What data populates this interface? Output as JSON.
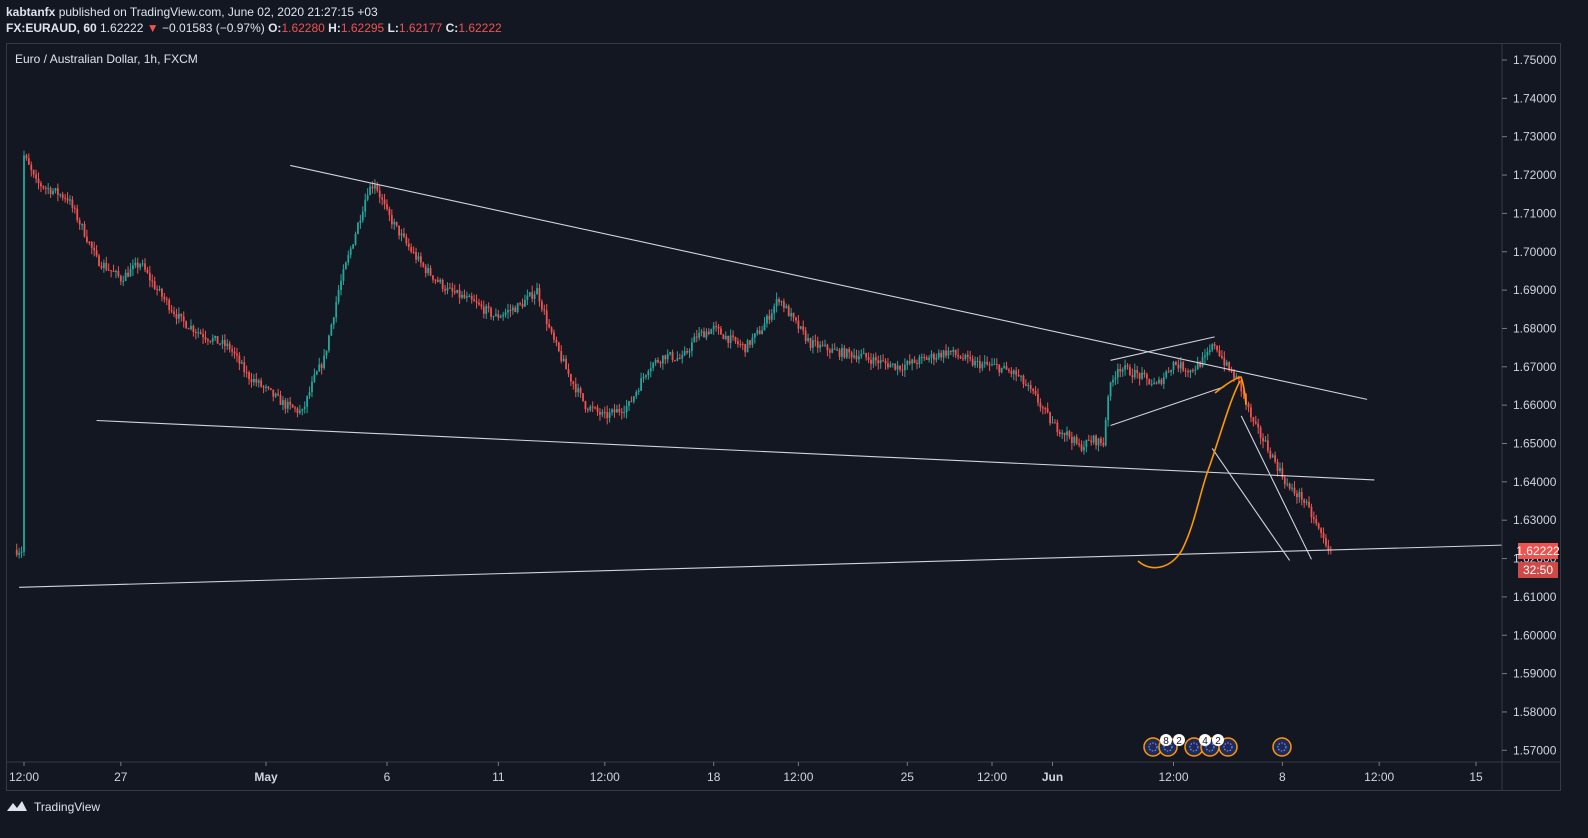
{
  "header": {
    "author": "kabtanfx",
    "published_text": "published on TradingView.com, June 02, 2020 21:27:15 +03",
    "symbol": "FX:EURAUD, 60",
    "last": "1.62222",
    "change": "−0.01583 (−0.97%)",
    "open_label": "O:",
    "open": "1.62280",
    "high_label": "H:",
    "high": "1.62295",
    "low_label": "L:",
    "low": "1.62177",
    "close_label": "C:",
    "close": "1.62222"
  },
  "legend": {
    "title": "Euro / Australian Dollar, 1h, FXCM"
  },
  "footer": {
    "brand": "TradingView"
  },
  "colors": {
    "background": "#131722",
    "up": "#26a69a",
    "down": "#ef5350",
    "drawing": "#d1d4dc",
    "orange": "#ff9800"
  },
  "chart_data": {
    "type": "candlestick",
    "title": "Euro / Australian Dollar, 1h, FXCM",
    "ylim": [
      1.565,
      1.7525
    ],
    "y_ticks": [
      "1.75000",
      "1.74000",
      "1.73000",
      "1.72000",
      "1.71000",
      "1.70000",
      "1.69000",
      "1.68000",
      "1.67000",
      "1.66000",
      "1.65000",
      "1.64000",
      "1.63000",
      "1.62000",
      "1.61000",
      "1.60000",
      "1.59000",
      "1.58000",
      "1.57000"
    ],
    "x_ticks": [
      "12:00",
      "27",
      "May",
      "6",
      "11",
      "12:00",
      "18",
      "12:00",
      "25",
      "12:00",
      "Jun",
      "12:00",
      "8",
      "12:00",
      "15"
    ],
    "x_tick_bar_index": [
      0,
      40,
      100,
      150,
      196,
      240,
      285,
      320,
      365,
      400,
      425,
      475,
      520,
      560,
      600
    ],
    "bar_count": 630,
    "price_path": [
      [
        0,
        1.725
      ],
      [
        5,
        1.718
      ],
      [
        18,
        1.714
      ],
      [
        25,
        1.705
      ],
      [
        30,
        1.698
      ],
      [
        40,
        1.693
      ],
      [
        48,
        1.697
      ],
      [
        55,
        1.69
      ],
      [
        65,
        1.682
      ],
      [
        75,
        1.678
      ],
      [
        85,
        1.675
      ],
      [
        92,
        1.668
      ],
      [
        100,
        1.664
      ],
      [
        108,
        1.66
      ],
      [
        115,
        1.658
      ],
      [
        120,
        1.667
      ],
      [
        124,
        1.672
      ],
      [
        130,
        1.69
      ],
      [
        137,
        1.705
      ],
      [
        142,
        1.716
      ],
      [
        145,
        1.718
      ],
      [
        150,
        1.71
      ],
      [
        158,
        1.702
      ],
      [
        165,
        1.696
      ],
      [
        175,
        1.69
      ],
      [
        185,
        1.687
      ],
      [
        195,
        1.683
      ],
      [
        205,
        1.686
      ],
      [
        212,
        1.69
      ],
      [
        218,
        1.678
      ],
      [
        225,
        1.668
      ],
      [
        232,
        1.66
      ],
      [
        240,
        1.657
      ],
      [
        250,
        1.66
      ],
      [
        258,
        1.67
      ],
      [
        265,
        1.673
      ],
      [
        272,
        1.672
      ],
      [
        278,
        1.678
      ],
      [
        285,
        1.68
      ],
      [
        292,
        1.677
      ],
      [
        298,
        1.675
      ],
      [
        305,
        1.68
      ],
      [
        312,
        1.688
      ],
      [
        318,
        1.682
      ],
      [
        325,
        1.676
      ],
      [
        335,
        1.674
      ],
      [
        345,
        1.673
      ],
      [
        355,
        1.671
      ],
      [
        362,
        1.67
      ],
      [
        372,
        1.672
      ],
      [
        382,
        1.674
      ],
      [
        392,
        1.671
      ],
      [
        402,
        1.67
      ],
      [
        410,
        1.668
      ],
      [
        418,
        1.662
      ],
      [
        425,
        1.655
      ],
      [
        432,
        1.652
      ],
      [
        436,
        1.649
      ],
      [
        442,
        1.651
      ],
      [
        446,
        1.65
      ],
      [
        448,
        1.663
      ],
      [
        452,
        1.67
      ],
      [
        460,
        1.668
      ],
      [
        468,
        1.665
      ],
      [
        475,
        1.671
      ],
      [
        482,
        1.669
      ],
      [
        488,
        1.672
      ],
      [
        492,
        1.676
      ],
      [
        497,
        1.67
      ],
      [
        502,
        1.666
      ],
      [
        508,
        1.655
      ],
      [
        513,
        1.65
      ],
      [
        518,
        1.644
      ],
      [
        523,
        1.638
      ],
      [
        528,
        1.636
      ],
      [
        533,
        1.63
      ],
      [
        537,
        1.625
      ],
      [
        540,
        1.62222
      ]
    ],
    "trendlines": [
      {
        "name": "upper-resistance",
        "p1": [
          110,
          1.7225
        ],
        "p2": [
          555,
          1.6615
        ]
      },
      {
        "name": "middle-support",
        "p1": [
          30,
          1.656
        ],
        "p2": [
          558,
          1.6405
        ]
      },
      {
        "name": "lower-support",
        "p1": [
          -2,
          1.6125
        ],
        "p2": [
          625,
          1.6235
        ]
      },
      {
        "name": "flag-upper",
        "p1": [
          449,
          1.6717
        ],
        "p2": [
          492,
          1.6778
        ]
      },
      {
        "name": "flag-lower",
        "p1": [
          449,
          1.6547
        ],
        "p2": [
          496,
          1.6648
        ]
      },
      {
        "name": "channel-upper",
        "p1": [
          503,
          1.6572
        ],
        "p2": [
          532,
          1.6198
        ]
      },
      {
        "name": "channel-lower",
        "p1": [
          491,
          1.6487
        ],
        "p2": [
          523,
          1.6195
        ]
      }
    ],
    "annotations": {
      "last_price_label": "1.62222",
      "countdown": "32:50",
      "event_badges": [
        "8",
        "2",
        "4",
        "2"
      ]
    }
  }
}
